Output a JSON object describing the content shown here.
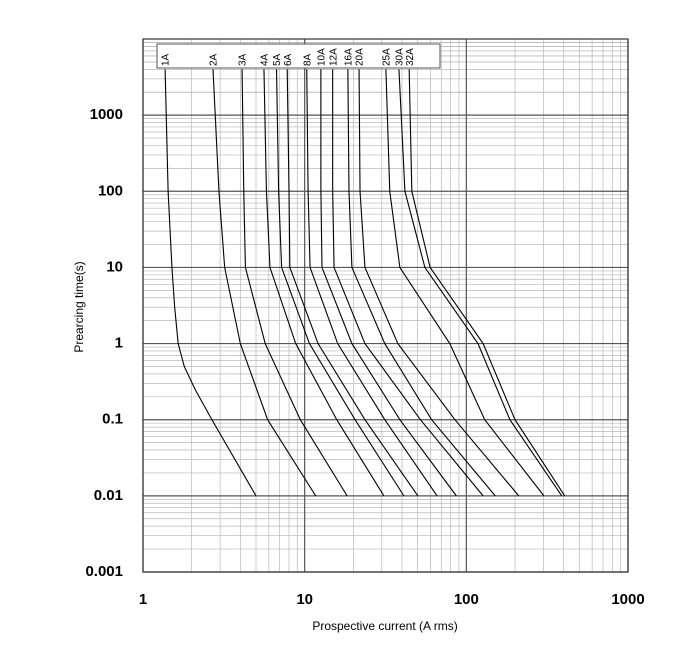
{
  "chart_data": {
    "type": "line",
    "x_label": "Prospective current (A rms)",
    "y_label": "Prearcing time(s)",
    "x_log": true,
    "y_log": true,
    "grid": true,
    "minor_grid": true,
    "xlim": [
      1,
      1000
    ],
    "ylim": [
      0.001,
      10000
    ],
    "xticks": [
      1,
      10,
      100,
      1000
    ],
    "yticks": [
      0.001,
      0.01,
      0.1,
      1,
      10,
      100,
      1000
    ],
    "series": [
      {
        "name": "1A",
        "color": "#000000",
        "x": [
          1.37,
          1.43,
          1.51,
          1.57,
          1.65,
          1.8,
          2.1,
          2.67,
          5.0
        ],
        "values": [
          4000,
          100,
          10,
          3,
          1,
          0.5,
          0.25,
          0.1,
          0.01
        ]
      },
      {
        "name": "2A",
        "color": "#000000",
        "x": [
          2.71,
          2.95,
          3.2,
          4.0,
          5.9,
          11.7
        ],
        "values": [
          4000,
          100,
          10,
          1,
          0.1,
          0.01
        ]
      },
      {
        "name": "3A",
        "color": "#000000",
        "x": [
          4.1,
          4.2,
          4.3,
          5.7,
          9.4,
          18.3
        ],
        "values": [
          4000,
          100,
          10,
          1,
          0.1,
          0.01
        ]
      },
      {
        "name": "4A",
        "color": "#000000",
        "x": [
          5.6,
          5.8,
          6.1,
          8.8,
          15.8,
          30.9
        ],
        "values": [
          4000,
          100,
          10,
          1,
          0.1,
          0.01
        ]
      },
      {
        "name": "5A",
        "color": "#000000",
        "x": [
          6.7,
          6.9,
          7.2,
          10.7,
          20.5,
          41.1
        ],
        "values": [
          4000,
          100,
          10,
          1,
          0.1,
          0.01
        ]
      },
      {
        "name": "6A",
        "color": "#000000",
        "x": [
          7.8,
          8.0,
          8.1,
          12.1,
          23.6,
          50.1
        ],
        "values": [
          4000,
          100,
          10,
          1,
          0.1,
          0.01
        ]
      },
      {
        "name": "8A",
        "color": "#000000",
        "x": [
          10.3,
          10.5,
          10.8,
          16,
          31.3,
          65.9
        ],
        "values": [
          4000,
          100,
          10,
          1,
          0.1,
          0.01
        ]
      },
      {
        "name": "10A",
        "color": "#000000",
        "x": [
          12.6,
          12.6,
          12.8,
          19.6,
          38.8,
          86.8
        ],
        "values": [
          4000,
          100,
          10,
          1,
          0.1,
          0.01
        ]
      },
      {
        "name": "12A",
        "color": "#000000",
        "x": [
          14.9,
          14.9,
          15.2,
          23.6,
          52,
          127
        ],
        "values": [
          4000,
          100,
          10,
          1,
          0.1,
          0.01
        ]
      },
      {
        "name": "16A",
        "color": "#000000",
        "x": [
          18.5,
          18.8,
          19.6,
          31.3,
          61,
          151
        ],
        "values": [
          4000,
          100,
          10,
          1,
          0.1,
          0.01
        ]
      },
      {
        "name": "20A",
        "color": "#000000",
        "x": [
          21.7,
          22,
          23.6,
          37.7,
          85,
          211
        ],
        "values": [
          4000,
          100,
          10,
          1,
          0.1,
          0.01
        ]
      },
      {
        "name": "25A",
        "color": "#000000",
        "x": [
          31.8,
          33.6,
          38.8,
          79,
          130,
          302
        ],
        "values": [
          4000,
          100,
          10,
          1,
          0.1,
          0.01
        ]
      },
      {
        "name": "30A",
        "color": "#000000",
        "x": [
          38.3,
          41.7,
          55.4,
          118,
          186,
          389
        ],
        "values": [
          4000,
          100,
          10,
          1,
          0.1,
          0.01
        ]
      },
      {
        "name": "32A",
        "color": "#000000",
        "x": [
          44.3,
          46,
          59.7,
          127,
          200,
          406
        ],
        "values": [
          4000,
          100,
          10,
          1,
          0.1,
          0.01
        ]
      }
    ]
  }
}
